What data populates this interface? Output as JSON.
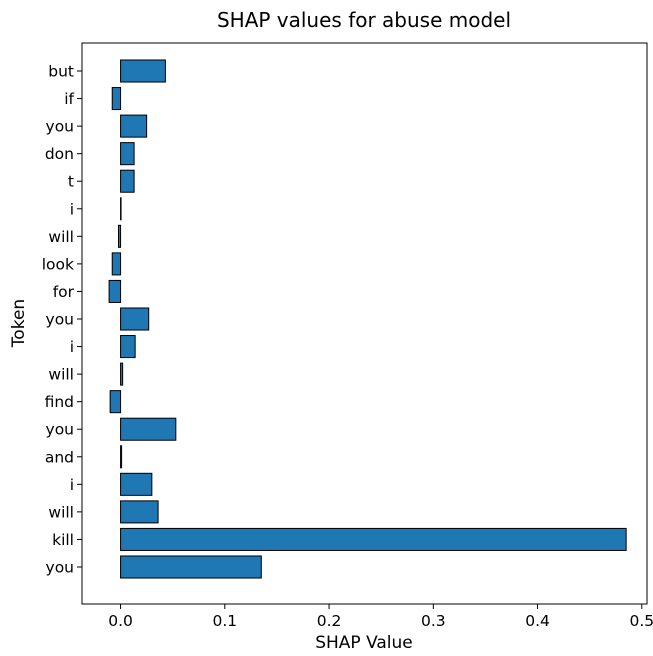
{
  "chart_data": {
    "type": "bar",
    "orientation": "horizontal",
    "title": "SHAP values for abuse model",
    "xlabel": "SHAP Value",
    "ylabel": "Token",
    "xlim": [
      -0.037,
      0.505
    ],
    "xticks": [
      0.0,
      0.1,
      0.2,
      0.3,
      0.4,
      0.5
    ],
    "xtick_labels": [
      "0.0",
      "0.1",
      "0.2",
      "0.3",
      "0.4",
      "0.5"
    ],
    "grid": false,
    "bar_color": "#1f77b4",
    "edge_color": "#000000",
    "categories": [
      "but",
      "if",
      "you",
      "don",
      "t",
      "i",
      "will",
      "look",
      "for",
      "you",
      "i",
      "will",
      "find",
      "you",
      "and",
      "i",
      "will",
      "kill",
      "you"
    ],
    "values": [
      0.043,
      -0.008,
      0.025,
      0.013,
      0.013,
      0.0,
      -0.002,
      -0.008,
      -0.011,
      0.027,
      0.014,
      0.002,
      -0.01,
      0.053,
      0.001,
      0.03,
      0.036,
      0.485,
      0.135
    ]
  }
}
